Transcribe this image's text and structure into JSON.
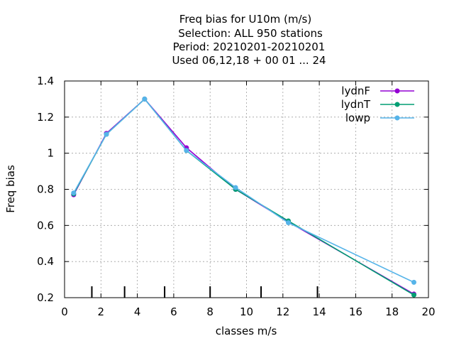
{
  "chart_data": {
    "type": "line",
    "title_lines": [
      "Freq bias  for U10m (m/s)",
      "Selection: ALL    950 stations",
      "Period: 20210201-20210201",
      "Used  06,12,18  + 00 01 ... 24"
    ],
    "xlabel": "classes m/s",
    "ylabel": "Freq bias",
    "xlim": [
      0,
      20
    ],
    "ylim": [
      0.2,
      1.4
    ],
    "xticks": [
      0,
      2,
      4,
      6,
      8,
      10,
      12,
      14,
      16,
      18,
      20
    ],
    "yticks": [
      0.2,
      0.4,
      0.6,
      0.8,
      1,
      1.2,
      1.4
    ],
    "ytick_labels": [
      "0.2",
      "0.4",
      "0.6",
      "0.8",
      "1",
      "1.2",
      "1.4"
    ],
    "grid": true,
    "legend_position": "top-right",
    "class_markers_x": [
      1.5,
      3.3,
      5.5,
      8.0,
      10.8,
      13.9
    ],
    "series": [
      {
        "name": "lydnF",
        "color": "#9400d3",
        "x": [
          0.5,
          2.3,
          4.4,
          6.7,
          9.4,
          12.3,
          19.2
        ],
        "y": [
          0.77,
          1.11,
          1.3,
          1.03,
          0.8,
          0.62,
          0.22
        ]
      },
      {
        "name": "lydnT",
        "color": "#009e73",
        "x": [
          0.5,
          2.3,
          4.4,
          6.7,
          9.4,
          12.3,
          19.2
        ],
        "y": [
          0.775,
          1.105,
          1.3,
          1.015,
          0.8,
          0.625,
          0.215
        ]
      },
      {
        "name": "lowp",
        "color": "#56b4e9",
        "x": [
          0.5,
          2.3,
          4.4,
          6.7,
          9.4,
          12.3,
          19.2
        ],
        "y": [
          0.78,
          1.105,
          1.3,
          1.015,
          0.81,
          0.615,
          0.285
        ]
      }
    ]
  }
}
